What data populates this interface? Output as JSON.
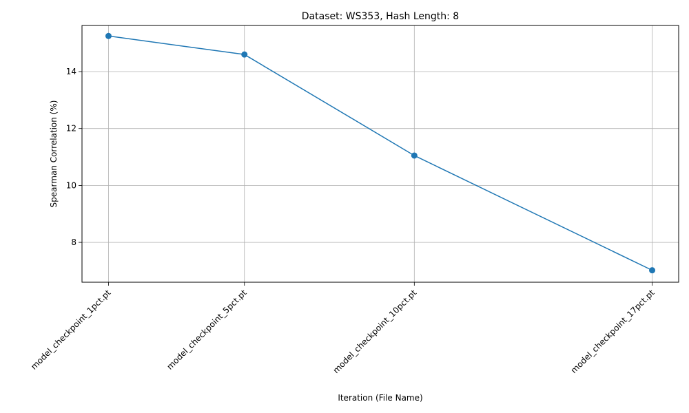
{
  "chart_data": {
    "type": "line",
    "title": "Dataset: WS353, Hash Length: 8",
    "xlabel": "Iteration (File Name)",
    "ylabel": "Spearman Correlation (%)",
    "categories": [
      "model_checkpoint_1pct.pt",
      "model_checkpoint_5pct.pt",
      "model_checkpoint_10pct.pt",
      "model_checkpoint_17pct.pt"
    ],
    "x_positions": [
      1,
      5,
      10,
      17
    ],
    "series": [
      {
        "values": [
          15.25,
          14.6,
          11.05,
          7.02
        ],
        "color": "#1f77b4",
        "marker": "circle"
      }
    ],
    "xlim": [
      0.22,
      17.78
    ],
    "ylim": [
      6.6,
      15.62
    ],
    "yticks": [
      8,
      10,
      12,
      14
    ],
    "grid": true,
    "legend": false
  }
}
